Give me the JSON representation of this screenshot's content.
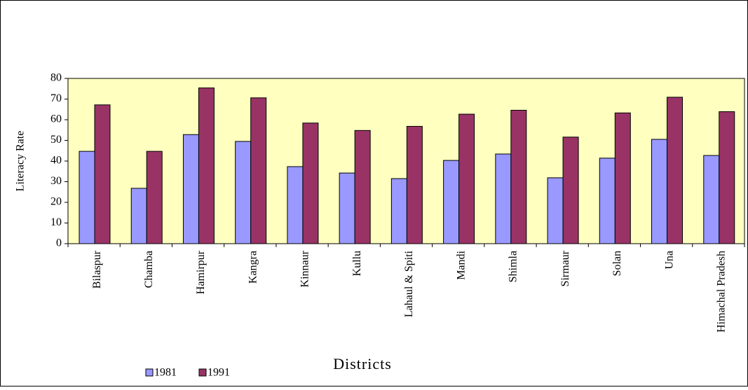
{
  "chart_data": {
    "type": "bar",
    "x_label": "Districts",
    "y_label": "Literacy Rate",
    "categories": [
      "Bilaspur",
      "Chamba",
      "Hamirpur",
      "Kangra",
      "Kinnaur",
      "Kullu",
      "Lahaul & Spiti",
      "Mandi",
      "Shimla",
      "Sirmaur",
      "Solan",
      "Una",
      "Himachal Pradesh"
    ],
    "series": [
      {
        "name": "1981",
        "color": "#9999ff",
        "values": [
          44.7,
          26.8,
          52.8,
          49.5,
          37.3,
          34.2,
          31.5,
          40.3,
          43.4,
          31.9,
          41.4,
          50.5,
          42.7
        ]
      },
      {
        "name": "1991",
        "color": "#993366",
        "values": [
          67.2,
          44.7,
          75.4,
          70.6,
          58.4,
          54.8,
          56.8,
          62.7,
          64.6,
          51.6,
          63.3,
          70.9,
          63.9
        ]
      }
    ],
    "ylim": [
      0,
      80
    ],
    "yticks": [
      0,
      10,
      20,
      30,
      40,
      50,
      60,
      70,
      80
    ],
    "legend": "bottom-left",
    "plot_background": "#ffffc0",
    "grid": false
  }
}
